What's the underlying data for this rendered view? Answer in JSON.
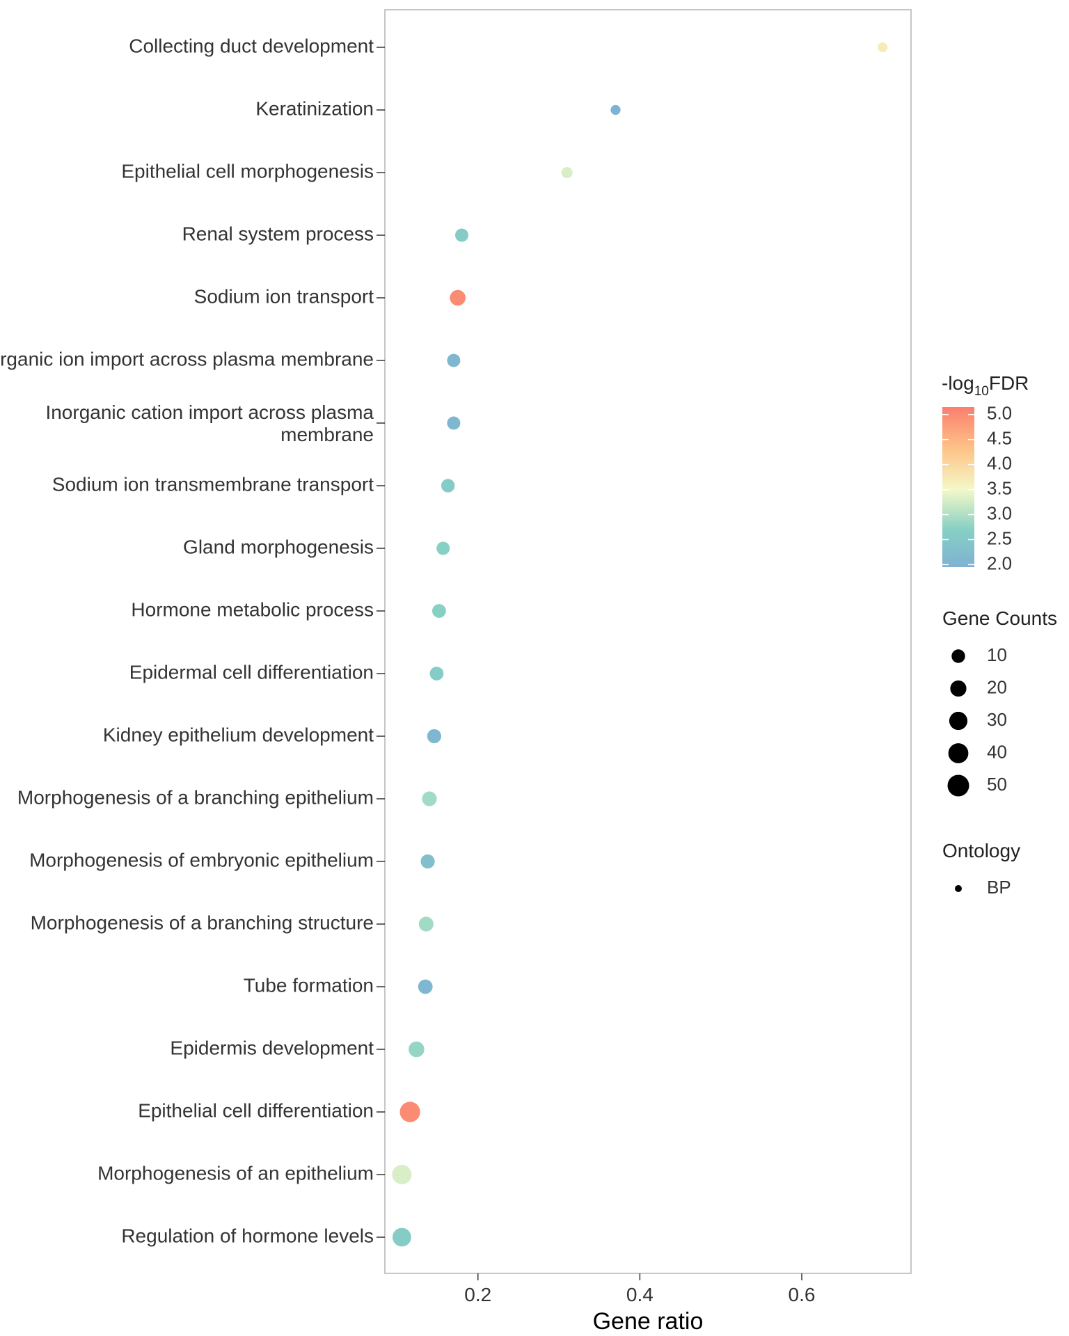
{
  "chart_data": {
    "type": "scatter",
    "title": "",
    "xlabel": "Gene ratio",
    "ylabel": "",
    "xlim": [
      0.085,
      0.735
    ],
    "xticks": [
      0.2,
      0.4,
      0.6
    ],
    "xtick_labels": [
      "0.2",
      "0.4",
      "0.6"
    ],
    "grid": false,
    "points": [
      {
        "term": "Collecting duct development",
        "gene_ratio": 0.7,
        "neg_log10_fdr": 3.7,
        "count": 2
      },
      {
        "term": "Keratinization",
        "gene_ratio": 0.37,
        "neg_log10_fdr": 2.0,
        "count": 2
      },
      {
        "term": "Epithelial cell morphogenesis",
        "gene_ratio": 0.31,
        "neg_log10_fdr": 3.3,
        "count": 4
      },
      {
        "term": "Renal system process",
        "gene_ratio": 0.18,
        "neg_log10_fdr": 2.6,
        "count": 9
      },
      {
        "term": "Sodium ion transport",
        "gene_ratio": 0.175,
        "neg_log10_fdr": 5.0,
        "count": 18
      },
      {
        "term": "Inorganic ion import across plasma membrane",
        "gene_ratio": 0.17,
        "neg_log10_fdr": 2.1,
        "count": 9
      },
      {
        "term": "Inorganic cation import across plasma membrane",
        "gene_ratio": 0.17,
        "neg_log10_fdr": 2.1,
        "count": 9
      },
      {
        "term": "Sodium ion transmembrane transport",
        "gene_ratio": 0.163,
        "neg_log10_fdr": 2.6,
        "count": 10
      },
      {
        "term": "Gland morphogenesis",
        "gene_ratio": 0.157,
        "neg_log10_fdr": 2.7,
        "count": 9
      },
      {
        "term": "Hormone metabolic process",
        "gene_ratio": 0.152,
        "neg_log10_fdr": 2.7,
        "count": 11
      },
      {
        "term": "Epidermal cell differentiation",
        "gene_ratio": 0.149,
        "neg_log10_fdr": 2.6,
        "count": 11
      },
      {
        "term": "Kidney epithelium development",
        "gene_ratio": 0.146,
        "neg_log10_fdr": 2.1,
        "count": 12
      },
      {
        "term": "Morphogenesis of a branching epithelium",
        "gene_ratio": 0.14,
        "neg_log10_fdr": 2.9,
        "count": 14
      },
      {
        "term": "Morphogenesis of embryonic epithelium",
        "gene_ratio": 0.138,
        "neg_log10_fdr": 2.3,
        "count": 12
      },
      {
        "term": "Morphogenesis of a branching structure",
        "gene_ratio": 0.136,
        "neg_log10_fdr": 2.9,
        "count": 14
      },
      {
        "term": "Tube formation",
        "gene_ratio": 0.135,
        "neg_log10_fdr": 2.1,
        "count": 13
      },
      {
        "term": "Epidermis development",
        "gene_ratio": 0.124,
        "neg_log10_fdr": 2.8,
        "count": 18
      },
      {
        "term": "Epithelial cell differentiation",
        "gene_ratio": 0.116,
        "neg_log10_fdr": 5.0,
        "count": 42
      },
      {
        "term": "Morphogenesis of an epithelium",
        "gene_ratio": 0.106,
        "neg_log10_fdr": 3.3,
        "count": 37
      },
      {
        "term": "Regulation of hormone levels",
        "gene_ratio": 0.106,
        "neg_log10_fdr": 2.6,
        "count": 32
      }
    ],
    "label_lines": {
      "Inorganic cation import across plasma membrane": [
        "Inorganic cation import across plasma",
        "membrane"
      ]
    },
    "color_legend": {
      "title_prefix": "-log",
      "title_subscript": "10",
      "title_suffix": "FDR",
      "min": 1.95,
      "max": 5.15,
      "ticks": [
        5.0,
        4.5,
        4.0,
        3.5,
        3.0,
        2.5,
        2.0
      ],
      "tick_labels": [
        "5.0",
        "4.5",
        "4.0",
        "3.5",
        "3.0",
        "2.5",
        "2.0"
      ],
      "stops": [
        {
          "value": 1.95,
          "color": "#7fb1d3"
        },
        {
          "value": 2.7,
          "color": "#86d0c4"
        },
        {
          "value": 3.5,
          "color": "#f4f8c8"
        },
        {
          "value": 4.3,
          "color": "#fec488"
        },
        {
          "value": 5.15,
          "color": "#fa7f6e"
        }
      ]
    },
    "size_legend": {
      "title": "Gene Counts",
      "values": [
        10,
        20,
        30,
        40,
        50
      ],
      "labels": [
        "10",
        "20",
        "30",
        "40",
        "50"
      ]
    },
    "shape_legend": {
      "title": "Ontology",
      "items": [
        "BP"
      ]
    }
  }
}
